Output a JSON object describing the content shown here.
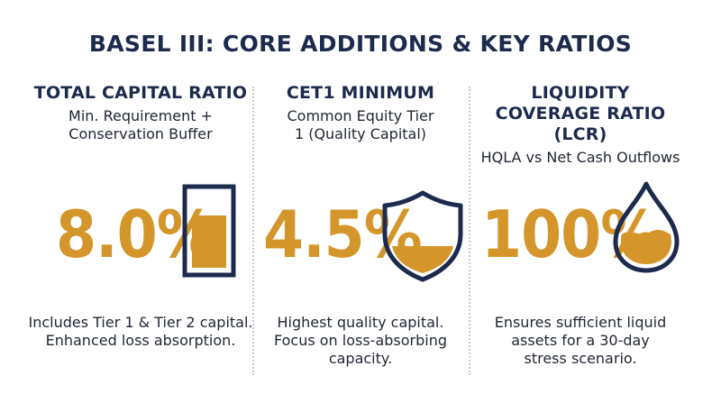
{
  "title": "BASEL III: CORE ADDITIONS & KEY RATIOS",
  "colors": {
    "navy": "#1c2a4d",
    "gold": "#d4962a"
  },
  "columns": [
    {
      "heading": "TOTAL CAPITAL RATIO",
      "subtitle": "Min. Requirement + Conservation Buffer",
      "value": "8.0%",
      "icon": "capital-bar-icon",
      "description": "Includes Tier 1 & Tier 2 capital. Enhanced loss absorption."
    },
    {
      "heading": "CET1 MINIMUM",
      "subtitle": "Common Equity Tier 1 (Quality Capital)",
      "value": "4.5%",
      "icon": "shield-icon",
      "description": "Highest quality capital. Focus on loss-absorbing capacity."
    },
    {
      "heading": "LIQUIDITY COVERAGE RATIO (LCR)",
      "subtitle": "HQLA vs Net Cash Outflows",
      "value": "100%",
      "icon": "liquid-drop-icon",
      "description": "Ensures sufficient liquid assets for a 30-day stress scenario."
    }
  ]
}
